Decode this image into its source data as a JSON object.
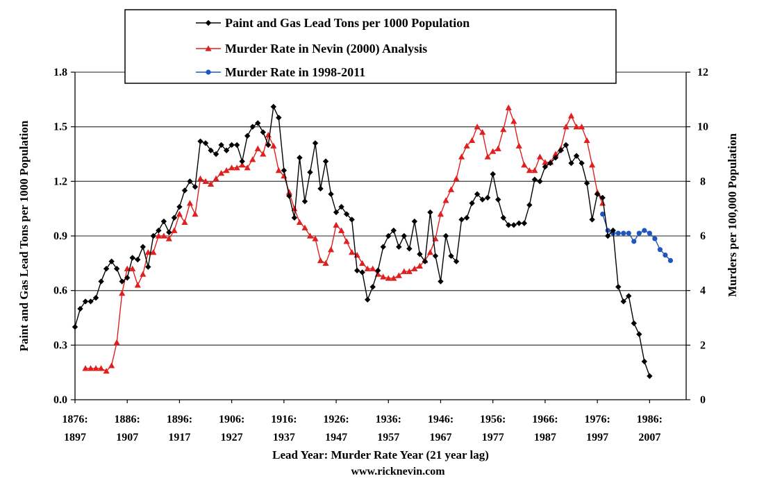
{
  "chart_data": {
    "type": "line",
    "xlabel": "Lead Year: Murder  Rate Year (21 year lag)",
    "credit": "www.ricknevin.com",
    "ylabel_left": "Paint  and  Gas Lead Tons per 1000 Population",
    "ylabel_right": "Murders   per 100,000 Population",
    "ylim_left": [
      0,
      1.8
    ],
    "ylim_right": [
      0,
      12
    ],
    "xlim": [
      1876,
      1993
    ],
    "grid": true,
    "legend_position": "top-center",
    "left_ticks": [
      "0.0",
      "0.3",
      "0.6",
      "0.9",
      "1.2",
      "1.5",
      "1.8"
    ],
    "right_ticks": [
      "0",
      "2",
      "4",
      "6",
      "8",
      "10",
      "12"
    ],
    "x_ticks": [
      {
        "year": 1876,
        "lead": "1876:",
        "murder": "1897"
      },
      {
        "year": 1886,
        "lead": "1886:",
        "murder": "1907"
      },
      {
        "year": 1896,
        "lead": "1896:",
        "murder": "1917"
      },
      {
        "year": 1906,
        "lead": "1906:",
        "murder": "1927"
      },
      {
        "year": 1916,
        "lead": "1916:",
        "murder": "1937"
      },
      {
        "year": 1926,
        "lead": "1926:",
        "murder": "1947"
      },
      {
        "year": 1936,
        "lead": "1936:",
        "murder": "1957"
      },
      {
        "year": 1946,
        "lead": "1946:",
        "murder": "1967"
      },
      {
        "year": 1956,
        "lead": "1956:",
        "murder": "1977"
      },
      {
        "year": 1966,
        "lead": "1966:",
        "murder": "1987"
      },
      {
        "year": 1976,
        "lead": "1976:",
        "murder": "1997"
      },
      {
        "year": 1986,
        "lead": "1986:",
        "murder": "2007"
      }
    ],
    "series": [
      {
        "name": "Paint and Gas Lead Tons per 1000 Population",
        "axis": "left",
        "color": "#000000",
        "marker": "diamond",
        "x": [
          1876,
          1877,
          1878,
          1879,
          1880,
          1881,
          1882,
          1883,
          1884,
          1885,
          1886,
          1887,
          1888,
          1889,
          1890,
          1891,
          1892,
          1893,
          1894,
          1895,
          1896,
          1897,
          1898,
          1899,
          1900,
          1901,
          1902,
          1903,
          1904,
          1905,
          1906,
          1907,
          1908,
          1909,
          1910,
          1911,
          1912,
          1913,
          1914,
          1915,
          1916,
          1917,
          1918,
          1919,
          1920,
          1921,
          1922,
          1923,
          1924,
          1925,
          1926,
          1927,
          1928,
          1929,
          1930,
          1931,
          1932,
          1933,
          1934,
          1935,
          1936,
          1937,
          1938,
          1939,
          1940,
          1941,
          1942,
          1943,
          1944,
          1945,
          1946,
          1947,
          1948,
          1949,
          1950,
          1951,
          1952,
          1953,
          1954,
          1955,
          1956,
          1957,
          1958,
          1959,
          1960,
          1961,
          1962,
          1963,
          1964,
          1965,
          1966,
          1967,
          1968,
          1969,
          1970,
          1971,
          1972,
          1973,
          1974,
          1975,
          1976,
          1977,
          1978,
          1979,
          1980,
          1981,
          1982,
          1983,
          1984,
          1985,
          1986
        ],
        "y": [
          0.4,
          0.5,
          0.54,
          0.54,
          0.56,
          0.65,
          0.72,
          0.76,
          0.72,
          0.65,
          0.67,
          0.78,
          0.77,
          0.84,
          0.73,
          0.9,
          0.93,
          0.98,
          0.92,
          1.0,
          1.06,
          1.15,
          1.2,
          1.17,
          1.42,
          1.41,
          1.37,
          1.35,
          1.4,
          1.37,
          1.4,
          1.4,
          1.31,
          1.45,
          1.5,
          1.52,
          1.47,
          1.4,
          1.61,
          1.55,
          1.26,
          1.12,
          1.0,
          1.33,
          1.09,
          1.25,
          1.41,
          1.16,
          1.31,
          1.13,
          1.03,
          1.06,
          1.02,
          0.99,
          0.71,
          0.7,
          0.55,
          0.62,
          0.71,
          0.84,
          0.9,
          0.93,
          0.84,
          0.9,
          0.83,
          0.98,
          0.8,
          0.76,
          1.03,
          0.79,
          0.65,
          0.9,
          0.79,
          0.76,
          0.99,
          1.0,
          1.08,
          1.13,
          1.1,
          1.11,
          1.24,
          1.1,
          1.0,
          0.96,
          0.96,
          0.97,
          0.97,
          1.07,
          1.21,
          1.2,
          1.28,
          1.3,
          1.33,
          1.37,
          1.4,
          1.3,
          1.34,
          1.3,
          1.19,
          0.99,
          1.13,
          1.11,
          0.9,
          0.93,
          0.62,
          0.54,
          0.57,
          0.42,
          0.36,
          0.21,
          0.13
        ]
      },
      {
        "name": "Murder Rate in Nevin (2000) Analysis",
        "axis": "right",
        "color": "#e0201e",
        "marker": "triangle",
        "x": [
          1878,
          1879,
          1880,
          1881,
          1882,
          1883,
          1884,
          1885,
          1886,
          1887,
          1888,
          1889,
          1890,
          1891,
          1892,
          1893,
          1894,
          1895,
          1896,
          1897,
          1898,
          1899,
          1900,
          1901,
          1902,
          1903,
          1904,
          1905,
          1906,
          1907,
          1908,
          1909,
          1910,
          1911,
          1912,
          1913,
          1914,
          1915,
          1916,
          1917,
          1918,
          1919,
          1920,
          1921,
          1922,
          1923,
          1924,
          1925,
          1926,
          1927,
          1928,
          1929,
          1930,
          1931,
          1932,
          1933,
          1934,
          1935,
          1936,
          1937,
          1938,
          1939,
          1940,
          1941,
          1942,
          1943,
          1944,
          1945,
          1946,
          1947,
          1948,
          1949,
          1950,
          1951,
          1952,
          1953,
          1954,
          1955,
          1956,
          1957,
          1958,
          1959,
          1960,
          1961,
          1962,
          1963,
          1964,
          1965,
          1966,
          1967,
          1968,
          1969,
          1970,
          1971,
          1972,
          1973,
          1974,
          1975,
          1976,
          1977
        ],
        "y": [
          1.15,
          1.15,
          1.15,
          1.15,
          1.05,
          1.25,
          2.1,
          3.9,
          4.8,
          4.8,
          4.2,
          4.6,
          5.4,
          5.4,
          6.0,
          6.0,
          5.9,
          6.2,
          6.8,
          6.5,
          7.2,
          6.8,
          8.1,
          8.0,
          7.9,
          8.1,
          8.3,
          8.4,
          8.5,
          8.5,
          8.6,
          8.5,
          8.8,
          9.2,
          9.0,
          9.7,
          9.3,
          8.4,
          8.2,
          7.6,
          7.0,
          6.5,
          6.3,
          6.0,
          5.9,
          5.1,
          5.0,
          5.5,
          6.4,
          6.2,
          5.8,
          5.4,
          5.3,
          5.0,
          4.8,
          4.8,
          4.6,
          4.5,
          4.45,
          4.45,
          4.55,
          4.7,
          4.7,
          4.8,
          4.9,
          5.1,
          5.4,
          5.9,
          6.8,
          7.3,
          7.7,
          8.1,
          8.9,
          9.3,
          9.5,
          10.0,
          9.8,
          8.9,
          9.1,
          9.2,
          9.9,
          10.7,
          10.2,
          9.3,
          8.6,
          8.4,
          8.4,
          8.9,
          8.7,
          8.7,
          9.0,
          9.2,
          10.0,
          10.4,
          10.0,
          10.0,
          9.5,
          8.6,
          7.6,
          7.2
        ]
      },
      {
        "name": "Murder Rate in 1998-2011",
        "axis": "right",
        "color": "#1f55c0",
        "marker": "circle",
        "x": [
          1977,
          1978,
          1979,
          1980,
          1981,
          1982,
          1983,
          1984,
          1985,
          1986,
          1987,
          1988,
          1989,
          1990
        ],
        "y": [
          6.8,
          6.2,
          6.1,
          6.1,
          6.1,
          6.1,
          5.8,
          6.1,
          6.2,
          6.1,
          5.9,
          5.5,
          5.3,
          5.1
        ]
      }
    ]
  }
}
